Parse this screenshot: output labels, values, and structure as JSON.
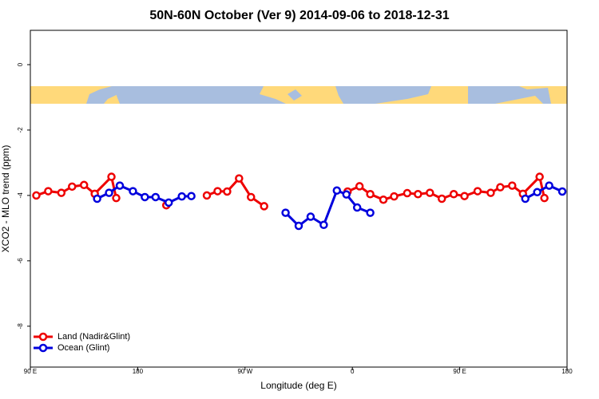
{
  "chart_data": {
    "type": "line",
    "title": "50N-60N October (Ver 9)   2014-09-06 to 2018-12-31",
    "x_label": "Longitude (deg E)",
    "y_label": "XCO2 - MLO trend (ppm)",
    "xlim": [
      90,
      540
    ],
    "xticks": [
      {
        "value": 90,
        "label": "90 E"
      },
      180,
      {
        "value": 270,
        "label": "90 W"
      },
      {
        "value": 360,
        "label": "0"
      },
      {
        "value": 450,
        "label": "90 E"
      },
      {
        "value": 540,
        "label": "180"
      }
    ],
    "ylim": [
      -9.25,
      1.05
    ],
    "yticks": [
      -8,
      -6,
      -4,
      -2,
      0
    ],
    "grid": false,
    "legend": "bottom-left",
    "series": [
      {
        "name": "Land (Nadir&Glint)",
        "color": "#ee0000",
        "x": [
          95,
          105,
          116,
          125,
          135,
          144,
          158,
          162,
          183,
          204,
          221,
          238,
          247,
          255,
          265,
          275,
          286,
          320,
          356,
          366,
          375,
          386,
          395,
          406,
          415,
          425,
          435,
          445,
          454,
          465,
          476,
          484,
          494,
          503,
          517,
          521
        ],
        "values": [
          -4.0,
          -3.87,
          -3.92,
          -3.73,
          -3.68,
          -3.95,
          -3.43,
          -4.08,
          null,
          -4.3,
          null,
          -4.0,
          -3.87,
          -3.88,
          -3.48,
          -4.05,
          -4.33,
          null,
          -3.88,
          -3.72,
          -3.96,
          -4.13,
          -4.03,
          -3.93,
          -3.96,
          -3.92,
          -4.1,
          -3.96,
          -4.02,
          -3.87,
          -3.92,
          -3.75,
          -3.7,
          -3.95,
          -3.43,
          -4.08
        ]
      },
      {
        "name": "Ocean (Glint)",
        "color": "#0000dd",
        "x": [
          146,
          156,
          165,
          176,
          186,
          195,
          206,
          217,
          225,
          265,
          304,
          315,
          325,
          336,
          347,
          355,
          364,
          375,
          440,
          505,
          515,
          525,
          536
        ],
        "values": [
          -4.1,
          -3.92,
          -3.7,
          -3.87,
          -4.05,
          -4.05,
          -4.22,
          -4.03,
          -4.02,
          null,
          -4.53,
          -4.93,
          -4.65,
          -4.9,
          -3.85,
          -3.97,
          -4.37,
          -4.53,
          null,
          -4.1,
          -3.9,
          -3.7,
          -3.88
        ]
      }
    ]
  }
}
